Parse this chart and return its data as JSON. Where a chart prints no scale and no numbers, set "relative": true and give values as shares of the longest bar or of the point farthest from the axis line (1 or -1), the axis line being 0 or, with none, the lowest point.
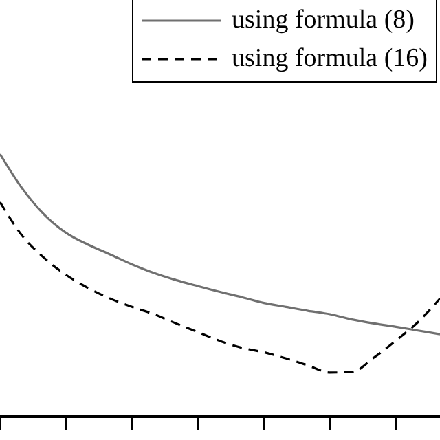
{
  "chart_data": {
    "type": "line",
    "relative": true,
    "categories": [
      null,
      null,
      null,
      null,
      null,
      null,
      null,
      null,
      null,
      null,
      null,
      null,
      null,
      null,
      null,
      null,
      null,
      null,
      null,
      null,
      null
    ],
    "legend": "top right",
    "marker": "none",
    "series": [
      {
        "name": "using formula (8)",
        "color": "#707070",
        "line_style": "solid",
        "values": [
          1,
          0.87,
          0.77,
          0.7,
          0.655,
          0.618,
          0.58,
          0.547,
          0.52,
          0.497,
          0.475,
          0.455,
          0.433,
          0.418,
          0.403,
          0.39,
          0.37,
          0.355,
          0.342,
          0.328,
          0.314
        ]
      },
      {
        "name": "using formula (16)",
        "color": "#000000",
        "line_style": "dashed",
        "values": [
          0.817,
          0.69,
          0.605,
          0.54,
          0.49,
          0.45,
          0.418,
          0.39,
          0.355,
          0.322,
          0.288,
          0.262,
          0.245,
          0.222,
          0.195,
          0.168,
          0.17,
          0.225,
          0.29,
          0.36,
          0.45
        ]
      }
    ]
  }
}
